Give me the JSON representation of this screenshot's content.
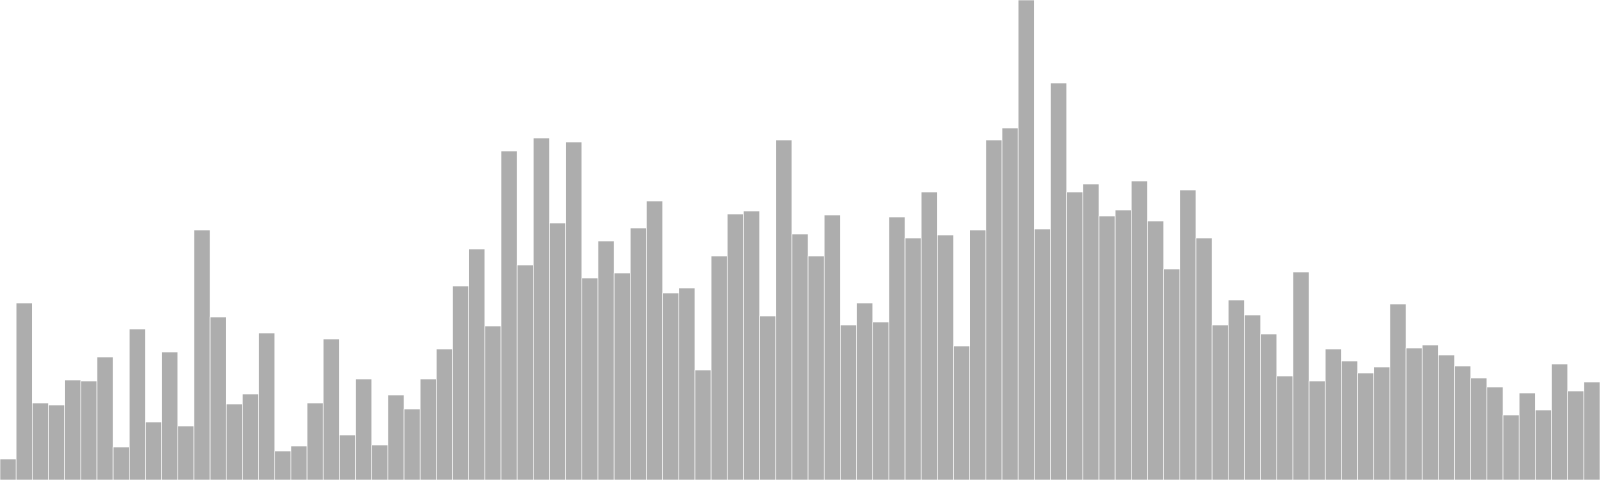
{
  "chart_data": {
    "type": "bar",
    "title": "",
    "xlabel": "",
    "ylabel": "",
    "ylim": [
      0,
      480
    ],
    "grid": false,
    "legend": "none",
    "bar_color": "#adadad",
    "background": "#ffffff",
    "values": [
      21,
      177,
      77,
      75,
      100,
      99,
      123,
      33,
      151,
      58,
      128,
      54,
      250,
      163,
      76,
      86,
      147,
      29,
      34,
      77,
      141,
      45,
      101,
      35,
      85,
      71,
      101,
      131,
      194,
      231,
      154,
      329,
      215,
      342,
      257,
      338,
      202,
      239,
      207,
      252,
      279,
      187,
      192,
      110,
      224,
      266,
      269,
      164,
      340,
      246,
      224,
      265,
      155,
      177,
      158,
      263,
      242,
      288,
      245,
      134,
      250,
      340,
      352,
      480,
      251,
      397,
      288,
      296,
      264,
      270,
      299,
      259,
      211,
      290,
      242,
      155,
      180,
      165,
      146,
      104,
      208,
      99,
      131,
      119,
      107,
      113,
      176,
      132,
      135,
      125,
      114,
      102,
      93,
      65,
      87,
      70,
      116,
      89,
      98
    ]
  }
}
